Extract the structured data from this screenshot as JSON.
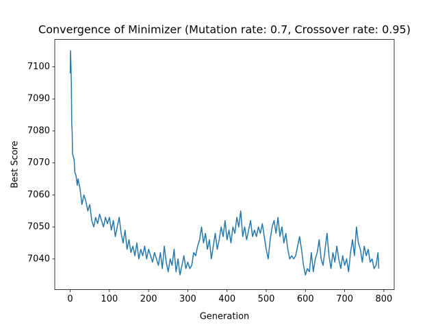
{
  "chart_data": {
    "type": "line",
    "title": "Convergence of Minimizer (Mutation rate: 0.7, Crossover rate: 0.95)",
    "xlabel": "Generation",
    "ylabel": "Best Score",
    "xlim": [
      -39.35,
      826.35
    ],
    "ylim": [
      7030.45,
      7108.55
    ],
    "xticks": [
      0,
      100,
      200,
      300,
      400,
      500,
      600,
      700,
      800
    ],
    "yticks": [
      7040,
      7050,
      7060,
      7070,
      7080,
      7090,
      7100
    ],
    "x": [
      0,
      1,
      2,
      3,
      4,
      5,
      6,
      8,
      10,
      12,
      15,
      18,
      20,
      25,
      30,
      35,
      40,
      45,
      50,
      55,
      60,
      65,
      70,
      75,
      80,
      85,
      90,
      95,
      100,
      105,
      110,
      115,
      120,
      125,
      130,
      135,
      140,
      145,
      150,
      155,
      160,
      165,
      170,
      175,
      180,
      185,
      190,
      195,
      200,
      205,
      210,
      215,
      220,
      225,
      230,
      235,
      240,
      245,
      250,
      255,
      260,
      265,
      270,
      275,
      280,
      285,
      290,
      295,
      300,
      305,
      310,
      315,
      320,
      325,
      330,
      335,
      340,
      345,
      350,
      355,
      360,
      365,
      370,
      375,
      380,
      385,
      390,
      395,
      400,
      405,
      410,
      415,
      420,
      425,
      430,
      435,
      440,
      445,
      450,
      455,
      460,
      465,
      470,
      475,
      480,
      485,
      490,
      495,
      500,
      505,
      510,
      515,
      520,
      525,
      530,
      535,
      540,
      545,
      550,
      555,
      560,
      565,
      570,
      575,
      580,
      585,
      590,
      595,
      600,
      605,
      610,
      615,
      620,
      625,
      630,
      635,
      640,
      645,
      650,
      655,
      660,
      665,
      670,
      675,
      680,
      685,
      690,
      695,
      700,
      705,
      710,
      715,
      720,
      725,
      730,
      735,
      740,
      745,
      750,
      755,
      760,
      765,
      770,
      775,
      780,
      785,
      787
    ],
    "series": [
      {
        "name": "Best Score",
        "color": "#1f77b4",
        "values": [
          7098,
          7105,
          7100,
          7095,
          7082,
          7080,
          7073,
          7072,
          7071,
          7067,
          7066,
          7063,
          7065,
          7062,
          7057,
          7060,
          7058,
          7055,
          7057,
          7052,
          7050,
          7053,
          7051,
          7054,
          7052,
          7050,
          7053,
          7051,
          7053,
          7049,
          7052,
          7047,
          7050,
          7053,
          7048,
          7045,
          7049,
          7043,
          7046,
          7042,
          7044,
          7041,
          7045,
          7040,
          7043,
          7041,
          7044,
          7040,
          7043,
          7041,
          7039,
          7042,
          7040,
          7038,
          7042,
          7037,
          7044,
          7039,
          7036,
          7040,
          7038,
          7043,
          7036,
          7040,
          7035,
          7038,
          7041,
          7037,
          7039,
          7037,
          7038,
          7042,
          7041,
          7044,
          7046,
          7050,
          7045,
          7048,
          7043,
          7046,
          7040,
          7044,
          7048,
          7043,
          7046,
          7050,
          7047,
          7052,
          7046,
          7049,
          7045,
          7050,
          7048,
          7053,
          7050,
          7055,
          7047,
          7050,
          7046,
          7049,
          7052,
          7047,
          7049,
          7047,
          7050,
          7048,
          7051,
          7047,
          7043,
          7040,
          7046,
          7050,
          7052,
          7048,
          7053,
          7047,
          7050,
          7045,
          7048,
          7043,
          7040,
          7041,
          7040,
          7041,
          7044,
          7047,
          7043,
          7038,
          7035,
          7037,
          7036,
          7042,
          7036,
          7040,
          7042,
          7046,
          7040,
          7038,
          7043,
          7048,
          7041,
          7037,
          7042,
          7039,
          7044,
          7040,
          7037,
          7041,
          7038,
          7040,
          7036,
          7042,
          7046,
          7041,
          7050,
          7045,
          7043,
          7039,
          7044,
          7041,
          7043,
          7039,
          7040,
          7037,
          7038,
          7042,
          7037
        ]
      }
    ]
  }
}
